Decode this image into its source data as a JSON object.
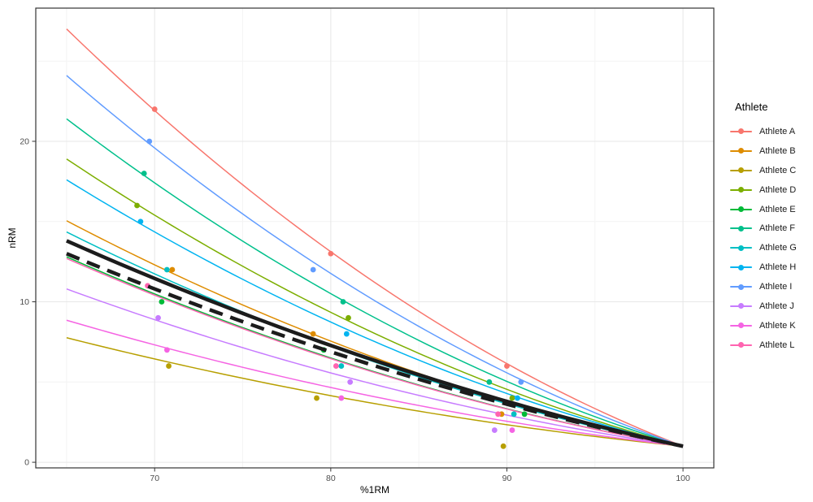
{
  "figure": {
    "background": "#FFFFFF",
    "panel": {
      "bg": "#FFFFFF",
      "border_color": "#343434",
      "grid_major_color": "#E7E7E7",
      "grid_minor_color": "#F4F4F4",
      "tick_color": "#343434",
      "tick_label_color": "#4D4D4D"
    }
  },
  "chart_data": {
    "type": "scatter",
    "title": "",
    "xlabel": "%1RM",
    "ylabel": "nRM",
    "xlim": [
      63.25,
      101.75
    ],
    "ylim": [
      -0.35,
      28.3
    ],
    "x_ticks": [
      70,
      80,
      90,
      100
    ],
    "x_minor_ticks": [
      65,
      75,
      85,
      95
    ],
    "y_ticks": [
      0,
      10,
      20
    ],
    "y_minor_ticks": [
      5,
      15,
      25
    ],
    "grid": true,
    "legend": {
      "title": "Athlete",
      "position": "right"
    },
    "curve_model": {
      "note": "each curve runs from x=65 to x=100 and converges at (100,1); nRM(x)=1+(start-1)*(a*t^2+(1-a)*t), t=(100-x)/35",
      "alpha": 0.43,
      "x_start": 65,
      "converge_point": [
        100,
        1
      ],
      "line_width": 1.5
    },
    "series": [
      {
        "name": "Athlete A",
        "color": "#F8766D",
        "curve_start_nrm_at_65": 27.0,
        "points": [
          [
            70,
            22
          ],
          [
            80,
            13
          ],
          [
            90,
            6
          ]
        ]
      },
      {
        "name": "Athlete B",
        "color": "#DE8C00",
        "curve_start_nrm_at_65": 15.05,
        "points": [
          [
            71,
            12
          ],
          [
            79,
            8
          ],
          [
            89.7,
            3
          ]
        ]
      },
      {
        "name": "Athlete C",
        "color": "#B79F00",
        "curve_start_nrm_at_65": 7.76,
        "points": [
          [
            70.8,
            6
          ],
          [
            79.2,
            4
          ],
          [
            89.8,
            1
          ]
        ]
      },
      {
        "name": "Athlete D",
        "color": "#7CAE00",
        "curve_start_nrm_at_65": 18.9,
        "points": [
          [
            69,
            16
          ],
          [
            81,
            9
          ],
          [
            90.3,
            4
          ]
        ]
      },
      {
        "name": "Athlete E",
        "color": "#00BA38",
        "curve_start_nrm_at_65": 12.8,
        "points": [
          [
            70.4,
            10
          ],
          [
            79.6,
            7
          ],
          [
            91,
            3
          ]
        ]
      },
      {
        "name": "Athlete F",
        "color": "#00C08B",
        "curve_start_nrm_at_65": 21.4,
        "points": [
          [
            69.4,
            18
          ],
          [
            80.7,
            10
          ],
          [
            89,
            5
          ]
        ]
      },
      {
        "name": "Athlete G",
        "color": "#00BFC4",
        "curve_start_nrm_at_65": 14.35,
        "points": [
          [
            70.7,
            12
          ],
          [
            80.6,
            6
          ],
          [
            90.4,
            3
          ]
        ]
      },
      {
        "name": "Athlete H",
        "color": "#00B4F0",
        "curve_start_nrm_at_65": 17.6,
        "points": [
          [
            69.2,
            15
          ],
          [
            80.9,
            8
          ],
          [
            90.6,
            4
          ]
        ]
      },
      {
        "name": "Athlete I",
        "color": "#619CFF",
        "curve_start_nrm_at_65": 24.1,
        "points": [
          [
            69.7,
            20
          ],
          [
            79,
            12
          ],
          [
            90.8,
            5
          ]
        ]
      },
      {
        "name": "Athlete J",
        "color": "#C77CFF",
        "curve_start_nrm_at_65": 10.8,
        "points": [
          [
            70.2,
            9
          ],
          [
            81.1,
            5
          ],
          [
            89.3,
            2
          ]
        ]
      },
      {
        "name": "Athlete K",
        "color": "#F564E3",
        "curve_start_nrm_at_65": 8.85,
        "points": [
          [
            70.7,
            7
          ],
          [
            80.6,
            4
          ],
          [
            90.3,
            2
          ]
        ]
      },
      {
        "name": "Athlete L",
        "color": "#FF64B0",
        "curve_start_nrm_at_65": 12.7,
        "points": [
          [
            69.6,
            11
          ],
          [
            80.3,
            6
          ],
          [
            89.5,
            3
          ]
        ]
      }
    ],
    "point_radius": 3.4,
    "summary_lines": [
      {
        "name": "group-line-solid",
        "color": "#1C1C1C",
        "style": "solid",
        "width": 4.5,
        "curve_start_nrm_at_65": 13.8,
        "alpha": 0.33
      },
      {
        "name": "group-line-dashed",
        "color": "#1C1C1C",
        "style": "dashed",
        "dash": "17 10",
        "width": 4.5,
        "curve_start_nrm_at_65": 13.0,
        "alpha": 0.33
      }
    ]
  }
}
